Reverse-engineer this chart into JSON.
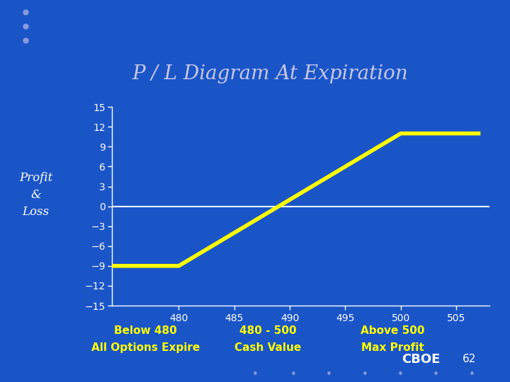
{
  "title": "P / L Diagram At Expiration",
  "background_color": "#1a55c8",
  "title_bg_color": "#420080",
  "title_text_color": "#c8c8e8",
  "plot_bg_color": "#1a55c8",
  "line_color": "#ffff00",
  "zero_line_color": "#ffffff",
  "axis_text_color": "#ffffff",
  "tick_label_color": "#ffffff",
  "ylabel_color": "#ffffff",
  "x_data": [
    474,
    480,
    480,
    500,
    507
  ],
  "y_data": [
    -9,
    -9,
    -9,
    11,
    11
  ],
  "ylim": [
    -15,
    15
  ],
  "xlim": [
    474,
    508
  ],
  "yticks": [
    -15,
    -12,
    -9,
    -6,
    -3,
    0,
    3,
    6,
    9,
    12,
    15
  ],
  "xticks": [
    480,
    485,
    490,
    495,
    500,
    505
  ],
  "line_width": 4,
  "annotation1_line1": "Below 480",
  "annotation1_line2": "All Options Expire",
  "annotation2_line1": "480 - 500",
  "annotation2_line2": "Cash Value",
  "annotation3_line1": "Above 500",
  "annotation3_line2": "Max Profit",
  "annotation_color": "#ffff00",
  "cboe_color": "#ffffff",
  "page_num": "62",
  "figsize": [
    7.2,
    5.4
  ],
  "dpi": 100
}
